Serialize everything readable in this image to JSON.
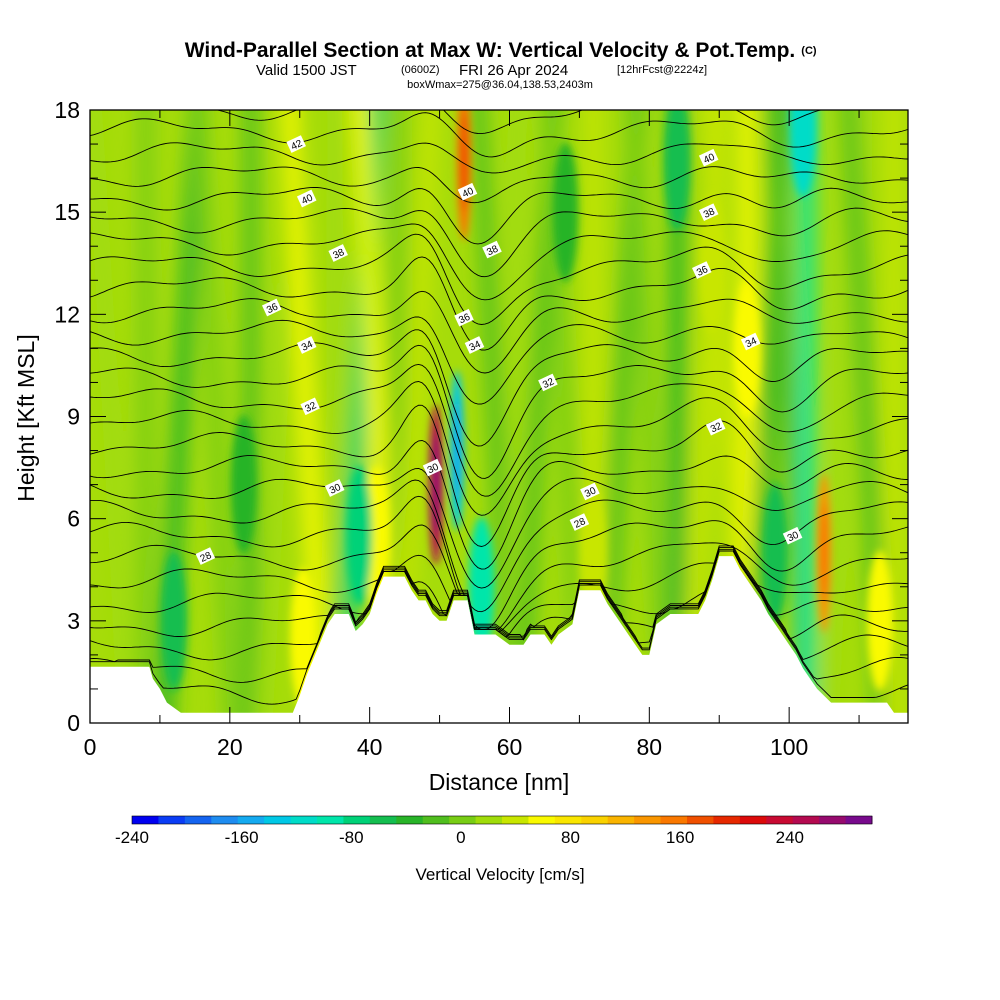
{
  "chart_data": {
    "type": "heatmap",
    "title": "Wind-Parallel Section at Max W: Vertical Velocity & Pot.Temp.",
    "title_mark": "(C)",
    "subtitle_valid": "Valid 1500 JST",
    "subtitle_utc": "(0600Z)",
    "subtitle_date": "FRI 26 Apr 2024",
    "subtitle_fcst": "[12hrFcst@2224z]",
    "subtitle2": "boxWmax=275@36.04,138.53,2403m",
    "xlabel": "Distance [nm]",
    "ylabel": "Height [Kft MSL]",
    "xlim": [
      0,
      117
    ],
    "ylim": [
      0,
      18
    ],
    "x_ticks": [
      0,
      20,
      40,
      60,
      80,
      100
    ],
    "y_ticks": [
      0,
      3,
      6,
      9,
      12,
      15,
      18
    ],
    "colorbar": {
      "title": "Vertical Velocity [cm/s]",
      "min": -240,
      "max": 300,
      "step": 20,
      "tick_values": [
        -240,
        -160,
        -80,
        0,
        80,
        160,
        240
      ],
      "tick_labels": [
        "-240",
        "-160",
        "-80",
        "0",
        "80",
        "160",
        "240"
      ],
      "colors": [
        "#0000f0",
        "#0a3cf5",
        "#1464f0",
        "#1e8cf0",
        "#14aaf0",
        "#00c8e6",
        "#00dcc8",
        "#00e6aa",
        "#00d278",
        "#14be50",
        "#28b428",
        "#50be1e",
        "#78cd14",
        "#a0dc0a",
        "#c8e600",
        "#fafa00",
        "#fae600",
        "#fad200",
        "#fab400",
        "#fa9600",
        "#fa7800",
        "#f05000",
        "#e62800",
        "#dc0a0a",
        "#c80a32",
        "#b40a50",
        "#960a6e",
        "#780a8c"
      ]
    },
    "contour_variable": "Potential Temperature",
    "contour_labels": [
      {
        "value": "42",
        "x": 29.5,
        "y": 17.0
      },
      {
        "value": "40",
        "x": 31.0,
        "y": 15.4
      },
      {
        "value": "38",
        "x": 35.5,
        "y": 13.8
      },
      {
        "value": "36",
        "x": 26.0,
        "y": 12.2
      },
      {
        "value": "34",
        "x": 31.0,
        "y": 11.1
      },
      {
        "value": "32",
        "x": 31.5,
        "y": 9.3
      },
      {
        "value": "30",
        "x": 35.0,
        "y": 6.9
      },
      {
        "value": "28",
        "x": 16.5,
        "y": 4.9
      },
      {
        "value": "30",
        "x": 49.0,
        "y": 7.5
      },
      {
        "value": "40",
        "x": 54.0,
        "y": 15.6
      },
      {
        "value": "38",
        "x": 57.5,
        "y": 13.9
      },
      {
        "value": "36",
        "x": 53.5,
        "y": 11.9
      },
      {
        "value": "34",
        "x": 55.0,
        "y": 11.1
      },
      {
        "value": "32",
        "x": 65.5,
        "y": 10.0
      },
      {
        "value": "30",
        "x": 71.5,
        "y": 6.8
      },
      {
        "value": "28",
        "x": 70.0,
        "y": 5.9
      },
      {
        "value": "40",
        "x": 88.5,
        "y": 16.6
      },
      {
        "value": "38",
        "x": 88.5,
        "y": 15.0
      },
      {
        "value": "36",
        "x": 87.5,
        "y": 13.3
      },
      {
        "value": "34",
        "x": 94.5,
        "y": 11.2
      },
      {
        "value": "32",
        "x": 89.5,
        "y": 8.7
      },
      {
        "value": "30",
        "x": 100.5,
        "y": 5.5
      }
    ],
    "terrain_height": [
      [
        0,
        1.65
      ],
      [
        5,
        1.65
      ],
      [
        8.5,
        1.65
      ],
      [
        9,
        1.3
      ],
      [
        10,
        1.0
      ],
      [
        11,
        0.6
      ],
      [
        13,
        0.3
      ],
      [
        29,
        0.3
      ],
      [
        30,
        0.8
      ],
      [
        31,
        1.4
      ],
      [
        32,
        1.9
      ],
      [
        33,
        2.4
      ],
      [
        34,
        2.9
      ],
      [
        35,
        3.2
      ],
      [
        37,
        3.2
      ],
      [
        38,
        2.7
      ],
      [
        39,
        2.9
      ],
      [
        40,
        3.2
      ],
      [
        41,
        3.8
      ],
      [
        42,
        4.3
      ],
      [
        45,
        4.3
      ],
      [
        46,
        3.9
      ],
      [
        47,
        3.6
      ],
      [
        48,
        3.6
      ],
      [
        49,
        3.2
      ],
      [
        50,
        3.0
      ],
      [
        51,
        3.0
      ],
      [
        52,
        3.6
      ],
      [
        54,
        3.6
      ],
      [
        55,
        2.6
      ],
      [
        58,
        2.6
      ],
      [
        60,
        2.3
      ],
      [
        62,
        2.3
      ],
      [
        63,
        2.6
      ],
      [
        65,
        2.6
      ],
      [
        66,
        2.3
      ],
      [
        67,
        2.6
      ],
      [
        69,
        2.9
      ],
      [
        70,
        3.9
      ],
      [
        73,
        3.9
      ],
      [
        74,
        3.5
      ],
      [
        75,
        3.2
      ],
      [
        76,
        2.9
      ],
      [
        77,
        2.6
      ],
      [
        78,
        2.3
      ],
      [
        79,
        2.0
      ],
      [
        80,
        2.0
      ],
      [
        81,
        2.9
      ],
      [
        83,
        3.2
      ],
      [
        87,
        3.2
      ],
      [
        88,
        3.6
      ],
      [
        89,
        4.2
      ],
      [
        90,
        4.9
      ],
      [
        92,
        4.9
      ],
      [
        93,
        4.5
      ],
      [
        94,
        4.2
      ],
      [
        95,
        3.9
      ],
      [
        96,
        3.6
      ],
      [
        97,
        3.2
      ],
      [
        98,
        2.9
      ],
      [
        99,
        2.6
      ],
      [
        100,
        2.3
      ],
      [
        101,
        2.0
      ],
      [
        102,
        1.6
      ],
      [
        103,
        1.3
      ],
      [
        104,
        1.0
      ],
      [
        106,
        0.6
      ],
      [
        114,
        0.6
      ],
      [
        115,
        0.3
      ],
      [
        117,
        0.3
      ]
    ],
    "vertical_velocity_features": [
      {
        "x": 49.5,
        "y": 7.0,
        "value": 275
      },
      {
        "x": 53.5,
        "y": 16.5,
        "value": 160
      },
      {
        "x": 52.5,
        "y": 8.0,
        "value": -140
      },
      {
        "x": 105,
        "y": 5.0,
        "value": 140
      },
      {
        "x": 113,
        "y": 3.0,
        "value": 60
      },
      {
        "x": 30.5,
        "y": 2.5,
        "value": 60
      },
      {
        "x": 41,
        "y": 5.5,
        "value": 70
      },
      {
        "x": 72,
        "y": 5.0,
        "value": 50
      },
      {
        "x": 94,
        "y": 11.0,
        "value": 60
      },
      {
        "x": 89,
        "y": 13.5,
        "value": 50
      },
      {
        "x": 102,
        "y": 17.5,
        "value": -110
      },
      {
        "x": 38.5,
        "y": 5.5,
        "value": -80
      },
      {
        "x": 56,
        "y": 4.0,
        "value": -90
      },
      {
        "x": 98,
        "y": 5.0,
        "value": -60
      },
      {
        "x": 84,
        "y": 16.5,
        "value": -50
      },
      {
        "x": 68,
        "y": 15.0,
        "value": -40
      },
      {
        "x": 12,
        "y": 3.0,
        "value": -50
      },
      {
        "x": 22,
        "y": 7.0,
        "value": -30
      }
    ]
  }
}
